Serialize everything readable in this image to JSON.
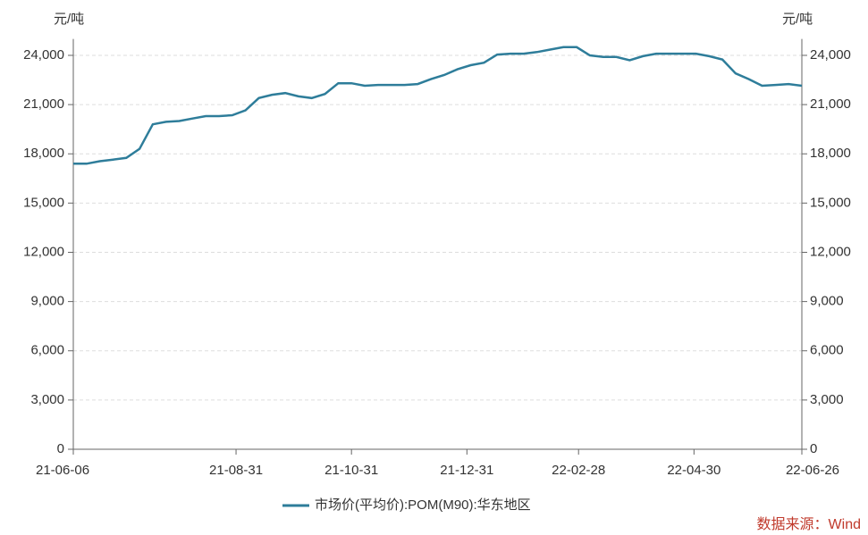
{
  "chart_data": {
    "type": "line",
    "y_unit": "元/吨",
    "y2_unit": "元/吨",
    "x": [
      "21-06-06",
      "21-06-13",
      "21-06-20",
      "21-06-27",
      "21-07-04",
      "21-07-11",
      "21-07-18",
      "21-07-25",
      "21-08-01",
      "21-08-08",
      "21-08-15",
      "21-08-22",
      "21-08-29",
      "21-09-05",
      "21-09-12",
      "21-09-19",
      "21-09-26",
      "21-10-03",
      "21-10-10",
      "21-10-17",
      "21-10-24",
      "21-10-31",
      "21-11-07",
      "21-11-14",
      "21-11-21",
      "21-11-28",
      "21-12-05",
      "21-12-12",
      "21-12-19",
      "21-12-26",
      "22-01-02",
      "22-01-09",
      "22-01-16",
      "22-01-23",
      "22-01-30",
      "22-02-06",
      "22-02-13",
      "22-02-20",
      "22-02-27",
      "22-03-06",
      "22-03-13",
      "22-03-20",
      "22-03-27",
      "22-04-03",
      "22-04-10",
      "22-04-17",
      "22-04-24",
      "22-05-01",
      "22-05-08",
      "22-05-15",
      "22-05-22",
      "22-05-29",
      "22-06-05",
      "22-06-12",
      "22-06-19",
      "22-06-26"
    ],
    "series": [
      {
        "name": "市场价(平均价):POM(M90):华东地区",
        "color": "#2e7d9a",
        "values": [
          17400,
          17400,
          17550,
          17650,
          17750,
          18300,
          19800,
          19950,
          20000,
          20150,
          20300,
          20300,
          20350,
          20650,
          21400,
          21600,
          21700,
          21500,
          21400,
          21650,
          22300,
          22300,
          22150,
          22200,
          22200,
          22200,
          22250,
          22550,
          22800,
          23150,
          23400,
          23550,
          24050,
          24100,
          24100,
          24200,
          24350,
          24500,
          24500,
          24000,
          23900,
          23900,
          23700,
          23950,
          24100,
          24100,
          24100,
          24100,
          23950,
          23750,
          22900,
          22550,
          22150,
          22200,
          22250,
          22150
        ]
      }
    ],
    "xticks": [
      "21-06-06",
      "21-08-31",
      "21-10-31",
      "21-12-31",
      "22-02-28",
      "22-04-30",
      "22-06-26"
    ],
    "ylim": [
      0,
      25000
    ],
    "yticks": [
      0,
      {
        "value": 3000,
        "label": "3,000"
      },
      {
        "value": 6000,
        "label": "6,000"
      },
      {
        "value": 9000,
        "label": "9,000"
      },
      {
        "value": 12000,
        "label": "12,000"
      },
      {
        "value": 15000,
        "label": "15,000"
      },
      {
        "value": 18000,
        "label": "18,000"
      },
      {
        "value": 21000,
        "label": "21,000"
      },
      {
        "value": 24000,
        "label": "24,000"
      }
    ],
    "y2lim": [
      0,
      25000
    ],
    "y2ticks": [
      0,
      {
        "value": 3000,
        "label": "3,000"
      },
      {
        "value": 6000,
        "label": "6,000"
      },
      {
        "value": 9000,
        "label": "9,000"
      },
      {
        "value": 12000,
        "label": "12,000"
      },
      {
        "value": 15000,
        "label": "15,000"
      },
      {
        "value": 18000,
        "label": "18,000"
      },
      {
        "value": 21000,
        "label": "21,000"
      },
      {
        "value": 24000,
        "label": "24,000"
      }
    ],
    "grid": true,
    "legend": "bottom",
    "source": "数据来源：Wind"
  }
}
